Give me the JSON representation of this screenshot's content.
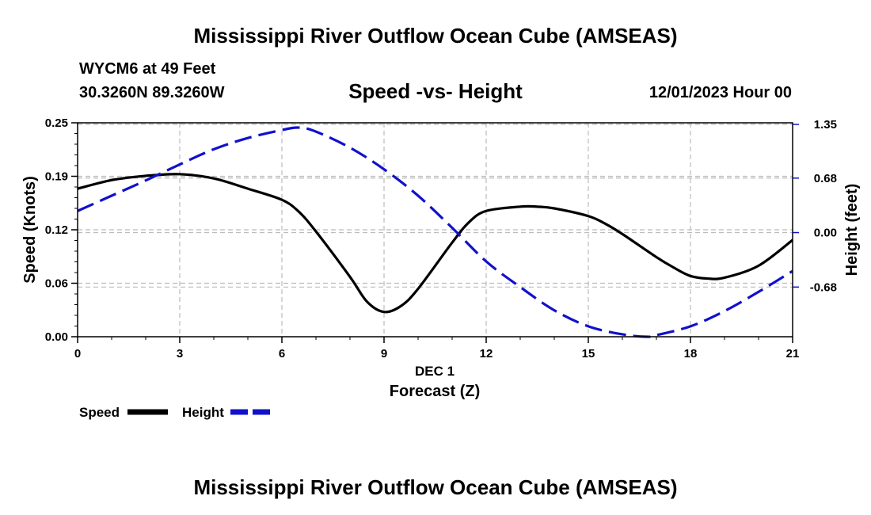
{
  "header": {
    "title": "Mississippi River Outflow Ocean Cube (AMSEAS)",
    "station": "WYCM6 at 49 Feet",
    "coords": "30.3260N  89.3260W",
    "subtitle": "Speed -vs- Height",
    "datetime": "12/01/2023 Hour 00"
  },
  "footer": {
    "title": "Mississippi River Outflow Ocean Cube (AMSEAS)"
  },
  "chart_data": {
    "type": "line",
    "title": "Speed -vs- Height",
    "xlabel_date": "DEC 1",
    "xlabel": "Forecast (Z)",
    "ylabel_left": "Speed (Knots)",
    "ylabel_right": "Height (feet)",
    "xlim": [
      0,
      21
    ],
    "ylim_left": [
      0,
      0.25
    ],
    "ylim_right": [
      -1.3,
      1.37
    ],
    "x_ticks": [
      "0",
      "3",
      "6",
      "9",
      "12",
      "15",
      "18",
      "21"
    ],
    "x_tick_values": [
      0,
      3,
      6,
      9,
      12,
      15,
      18,
      21
    ],
    "y_ticks_left": [
      "0.00",
      "0.06",
      "0.12",
      "0.19",
      "0.25"
    ],
    "y_tick_values_left": [
      0,
      0.0625,
      0.125,
      0.1875,
      0.25
    ],
    "y_ticks_right": [
      "1.35",
      "0.68",
      "0.00",
      "-0.68"
    ],
    "y_tick_values_right": [
      1.35,
      0.68,
      0.0,
      -0.68
    ],
    "grid": true,
    "series": [
      {
        "name": "Speed",
        "axis": "left",
        "color": "#000000",
        "dash": "solid",
        "x": [
          0,
          1,
          2,
          3,
          4,
          5,
          6,
          6.5,
          7,
          8,
          8.5,
          9,
          9.5,
          10,
          11,
          11.5,
          12,
          13,
          13.5,
          14,
          15,
          15.5,
          16,
          17,
          17.5,
          18,
          18.5,
          19,
          20,
          21
        ],
        "y": [
          0.173,
          0.183,
          0.188,
          0.19,
          0.185,
          0.173,
          0.16,
          0.146,
          0.123,
          0.07,
          0.041,
          0.029,
          0.036,
          0.056,
          0.11,
          0.134,
          0.147,
          0.152,
          0.152,
          0.15,
          0.141,
          0.132,
          0.12,
          0.093,
          0.081,
          0.071,
          0.068,
          0.069,
          0.083,
          0.113
        ]
      },
      {
        "name": "Height",
        "axis": "right",
        "color": "#1111cc",
        "dash": "dashed",
        "x": [
          0,
          1,
          2,
          3,
          4,
          5,
          6,
          6.5,
          7,
          8,
          9,
          10,
          11,
          12,
          13,
          14,
          15,
          16,
          16.7,
          17,
          18,
          19,
          20,
          21
        ],
        "y": [
          0.27,
          0.46,
          0.65,
          0.85,
          1.04,
          1.18,
          1.28,
          1.31,
          1.26,
          1.06,
          0.79,
          0.46,
          0.06,
          -0.36,
          -0.68,
          -0.97,
          -1.17,
          -1.27,
          -1.3,
          -1.28,
          -1.17,
          -0.98,
          -0.74,
          -0.48
        ]
      }
    ]
  },
  "legend": {
    "speed_label": "Speed",
    "height_label": "Height"
  }
}
